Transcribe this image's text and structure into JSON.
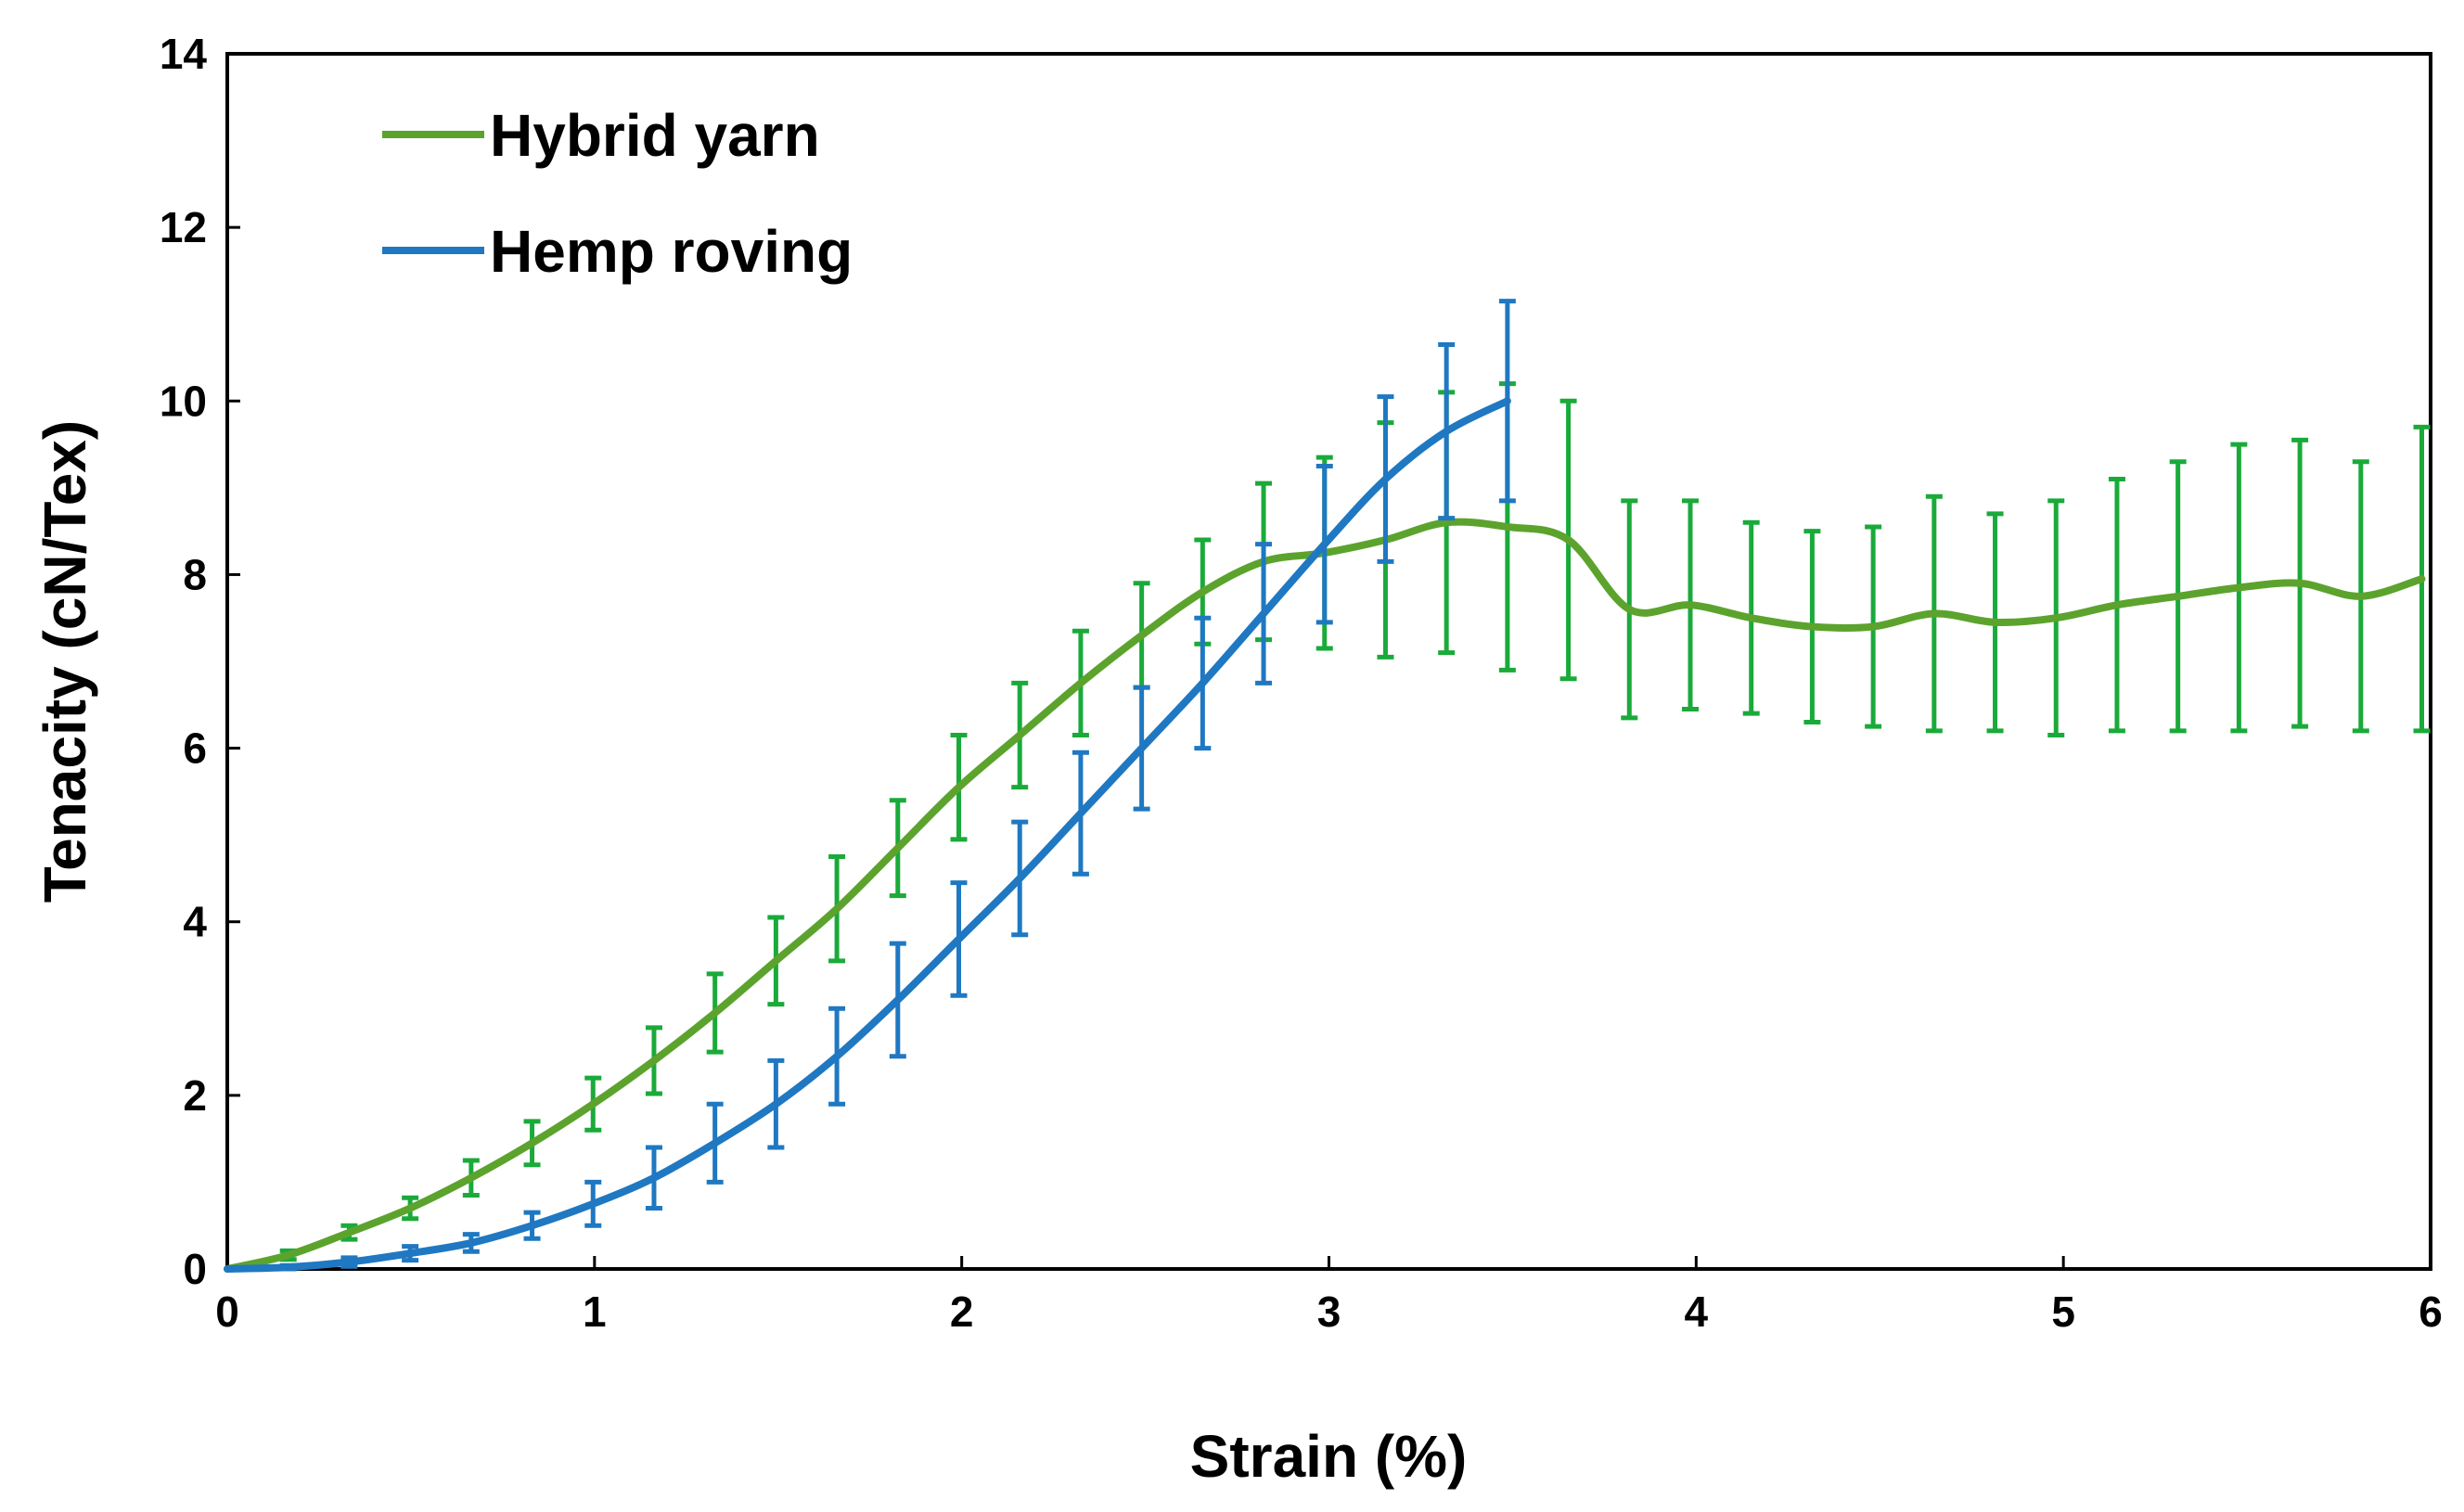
{
  "chart_data": {
    "type": "line",
    "title": "",
    "xlabel": "Strain (%)",
    "ylabel": "Tenacity (cN/Tex)",
    "xlim": [
      0,
      6
    ],
    "ylim": [
      0,
      14
    ],
    "xticks": [
      0,
      1,
      2,
      3,
      4,
      5,
      6
    ],
    "yticks": [
      0,
      2,
      4,
      6,
      8,
      10,
      12,
      14
    ],
    "grid": false,
    "legend_position": "top-left",
    "series": [
      {
        "name": "Hybrid yarn",
        "color": "#5ca32e",
        "errorbar_color": "#1aaa3a",
        "points": [
          {
            "x": 0.0,
            "y": 0.0,
            "err": 0.0
          },
          {
            "x": 0.166,
            "y": 0.16,
            "err": 0.05
          },
          {
            "x": 0.332,
            "y": 0.42,
            "err": 0.08
          },
          {
            "x": 0.498,
            "y": 0.7,
            "err": 0.12
          },
          {
            "x": 0.664,
            "y": 1.05,
            "err": 0.2
          },
          {
            "x": 0.83,
            "y": 1.45,
            "err": 0.25
          },
          {
            "x": 0.996,
            "y": 1.9,
            "err": 0.3
          },
          {
            "x": 1.162,
            "y": 2.4,
            "err": 0.38
          },
          {
            "x": 1.328,
            "y": 2.95,
            "err": 0.45
          },
          {
            "x": 1.494,
            "y": 3.55,
            "err": 0.5
          },
          {
            "x": 1.66,
            "y": 4.15,
            "err": 0.6
          },
          {
            "x": 1.826,
            "y": 4.85,
            "err": 0.55
          },
          {
            "x": 1.992,
            "y": 5.55,
            "err": 0.6
          },
          {
            "x": 2.158,
            "y": 6.15,
            "err": 0.6
          },
          {
            "x": 2.324,
            "y": 6.75,
            "err": 0.6
          },
          {
            "x": 2.49,
            "y": 7.3,
            "err": 0.6
          },
          {
            "x": 2.656,
            "y": 7.8,
            "err": 0.6
          },
          {
            "x": 2.822,
            "y": 8.15,
            "err": 0.9
          },
          {
            "x": 2.988,
            "y": 8.25,
            "err": 1.1
          },
          {
            "x": 3.154,
            "y": 8.4,
            "err": 1.35
          },
          {
            "x": 3.32,
            "y": 8.6,
            "err": 1.5
          },
          {
            "x": 3.486,
            "y": 8.55,
            "err": 1.65
          },
          {
            "x": 3.652,
            "y": 8.4,
            "err": 1.6
          },
          {
            "x": 3.818,
            "y": 7.6,
            "err": 1.25
          },
          {
            "x": 3.984,
            "y": 7.65,
            "err": 1.2
          },
          {
            "x": 4.15,
            "y": 7.5,
            "err": 1.1
          },
          {
            "x": 4.316,
            "y": 7.4,
            "err": 1.1
          },
          {
            "x": 4.482,
            "y": 7.4,
            "err": 1.15
          },
          {
            "x": 4.648,
            "y": 7.55,
            "err": 1.35
          },
          {
            "x": 4.814,
            "y": 7.45,
            "err": 1.25
          },
          {
            "x": 4.98,
            "y": 7.5,
            "err": 1.35
          },
          {
            "x": 5.146,
            "y": 7.65,
            "err": 1.45
          },
          {
            "x": 5.312,
            "y": 7.75,
            "err": 1.55
          },
          {
            "x": 5.478,
            "y": 7.85,
            "err": 1.65
          },
          {
            "x": 5.644,
            "y": 7.9,
            "err": 1.65
          },
          {
            "x": 5.81,
            "y": 7.75,
            "err": 1.55
          },
          {
            "x": 5.976,
            "y": 7.95,
            "err": 1.75
          }
        ]
      },
      {
        "name": "Hemp roving",
        "color": "#1f78c1",
        "errorbar_color": "#1f78c1",
        "points": [
          {
            "x": 0.0,
            "y": 0.0,
            "err": 0.0
          },
          {
            "x": 0.166,
            "y": 0.02,
            "err": 0.02
          },
          {
            "x": 0.332,
            "y": 0.08,
            "err": 0.05
          },
          {
            "x": 0.498,
            "y": 0.18,
            "err": 0.08
          },
          {
            "x": 0.664,
            "y": 0.3,
            "err": 0.1
          },
          {
            "x": 0.83,
            "y": 0.5,
            "err": 0.15
          },
          {
            "x": 0.996,
            "y": 0.75,
            "err": 0.25
          },
          {
            "x": 1.162,
            "y": 1.05,
            "err": 0.35
          },
          {
            "x": 1.328,
            "y": 1.45,
            "err": 0.45
          },
          {
            "x": 1.494,
            "y": 1.9,
            "err": 0.5
          },
          {
            "x": 1.66,
            "y": 2.45,
            "err": 0.55
          },
          {
            "x": 1.826,
            "y": 3.1,
            "err": 0.65
          },
          {
            "x": 1.992,
            "y": 3.8,
            "err": 0.65
          },
          {
            "x": 2.158,
            "y": 4.5,
            "err": 0.65
          },
          {
            "x": 2.324,
            "y": 5.25,
            "err": 0.7
          },
          {
            "x": 2.49,
            "y": 6.0,
            "err": 0.7
          },
          {
            "x": 2.656,
            "y": 6.75,
            "err": 0.75
          },
          {
            "x": 2.822,
            "y": 7.55,
            "err": 0.8
          },
          {
            "x": 2.988,
            "y": 8.35,
            "err": 0.9
          },
          {
            "x": 3.154,
            "y": 9.1,
            "err": 0.95
          },
          {
            "x": 3.32,
            "y": 9.65,
            "err": 1.0
          },
          {
            "x": 3.486,
            "y": 10.0,
            "err": 1.15
          }
        ]
      }
    ]
  }
}
